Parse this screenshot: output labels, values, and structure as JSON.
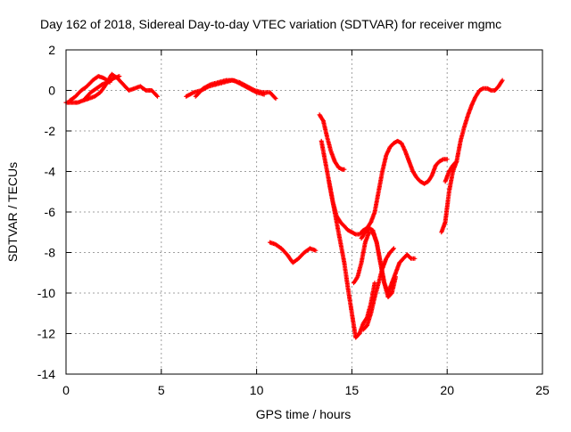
{
  "colors": {
    "series": "#ff0000",
    "grid": "#a0a0a0",
    "axis": "#000000"
  },
  "chart_data": {
    "type": "scatter",
    "title": "Day 162 of 2018, Sidereal Day-to-day VTEC variation (SDTVAR) for receiver mgmc",
    "xlabel": "GPS time / hours",
    "ylabel": "SDTVAR / TECUs",
    "xlim": [
      0,
      25
    ],
    "ylim": [
      -14,
      2
    ],
    "xticks": [
      0,
      5,
      10,
      15,
      20,
      25
    ],
    "yticks": [
      -14,
      -12,
      -10,
      -8,
      -6,
      -4,
      -2,
      0,
      2
    ],
    "grid": true,
    "legend": "none",
    "marker": "plus",
    "segments": [
      {
        "x": [
          0.0,
          0.3,
          0.6,
          0.9,
          1.2,
          1.5,
          1.8,
          2.1,
          2.4,
          2.7,
          3.0,
          3.3,
          3.6,
          3.9,
          4.2,
          4.5,
          4.8
        ],
        "y": [
          -0.6,
          -0.6,
          -0.6,
          -0.5,
          -0.4,
          -0.3,
          -0.1,
          0.3,
          0.8,
          0.6,
          0.3,
          0.0,
          0.1,
          0.2,
          0.0,
          0.0,
          -0.3
        ]
      },
      {
        "x": [
          0.2,
          0.5,
          0.8,
          1.1,
          1.4,
          1.7,
          2.0,
          2.3
        ],
        "y": [
          -0.5,
          -0.3,
          0.0,
          0.2,
          0.5,
          0.7,
          0.6,
          0.4
        ]
      },
      {
        "x": [
          1.0,
          1.3,
          1.6,
          1.9,
          2.2,
          2.5,
          2.8
        ],
        "y": [
          -0.4,
          -0.1,
          0.1,
          0.3,
          0.4,
          0.6,
          0.7
        ]
      },
      {
        "x": [
          6.3,
          6.7,
          7.1,
          7.5,
          7.9,
          8.3,
          8.7,
          9.1,
          9.5,
          9.9,
          10.3,
          10.7,
          11.0
        ],
        "y": [
          -0.3,
          -0.1,
          0.0,
          0.2,
          0.3,
          0.4,
          0.5,
          0.4,
          0.2,
          0.0,
          -0.1,
          -0.1,
          -0.4
        ]
      },
      {
        "x": [
          6.8,
          7.2,
          7.6,
          8.0,
          8.4,
          8.8,
          9.2,
          9.6,
          10.0,
          10.4
        ],
        "y": [
          -0.3,
          0.1,
          0.3,
          0.4,
          0.5,
          0.5,
          0.3,
          0.1,
          -0.1,
          -0.2
        ]
      },
      {
        "x": [
          10.7,
          11.0,
          11.3,
          11.6,
          11.9,
          12.2,
          12.5,
          12.8,
          13.1
        ],
        "y": [
          -7.5,
          -7.6,
          -7.8,
          -8.1,
          -8.5,
          -8.3,
          -8.0,
          -7.8,
          -7.9
        ]
      },
      {
        "x": [
          13.3,
          13.5,
          13.7,
          13.9,
          14.1,
          14.3,
          14.5,
          14.6
        ],
        "y": [
          -1.2,
          -1.5,
          -2.3,
          -3.0,
          -3.5,
          -3.8,
          -3.9,
          -3.9
        ]
      },
      {
        "x": [
          13.4,
          13.6,
          13.8,
          14.0,
          14.2,
          14.4,
          14.6,
          14.8,
          15.0,
          15.2,
          15.4,
          15.6,
          15.8,
          16.0,
          16.2,
          16.4,
          16.6,
          16.8,
          17.0,
          17.2,
          17.4,
          17.6,
          17.8,
          18.0,
          18.2,
          18.4,
          18.6,
          18.8,
          19.0,
          19.2,
          19.4,
          19.6,
          19.8,
          20.0
        ],
        "y": [
          -2.5,
          -3.5,
          -4.5,
          -5.5,
          -6.2,
          -6.5,
          -6.7,
          -6.9,
          -7.0,
          -7.1,
          -7.1,
          -6.9,
          -6.8,
          -6.5,
          -6.0,
          -5.0,
          -4.0,
          -3.2,
          -2.8,
          -2.6,
          -2.5,
          -2.6,
          -3.0,
          -3.5,
          -4.0,
          -4.3,
          -4.5,
          -4.6,
          -4.5,
          -4.2,
          -3.7,
          -3.5,
          -3.4,
          -3.4
        ]
      },
      {
        "x": [
          13.8,
          14.0,
          14.2,
          14.4,
          14.6,
          14.8,
          15.0,
          15.2,
          15.4,
          15.6,
          15.8,
          16.0,
          16.2
        ],
        "y": [
          -4.5,
          -5.5,
          -6.5,
          -7.5,
          -8.5,
          -9.8,
          -11.0,
          -12.2,
          -12.0,
          -11.5,
          -11.2,
          -10.5,
          -9.5
        ]
      },
      {
        "x": [
          15.5,
          15.7,
          15.9,
          16.1,
          16.3,
          16.5,
          16.7,
          16.9,
          17.1,
          17.3,
          17.5,
          17.7,
          17.9,
          18.1,
          18.3
        ],
        "y": [
          -7.3,
          -7.0,
          -6.8,
          -6.9,
          -7.5,
          -8.5,
          -9.5,
          -10.0,
          -9.5,
          -9.0,
          -8.5,
          -8.3,
          -8.1,
          -8.3,
          -8.3
        ]
      },
      {
        "x": [
          15.1,
          15.3,
          15.5,
          15.7,
          15.9,
          16.1,
          16.3,
          16.5,
          16.7,
          16.9,
          17.1,
          17.3
        ],
        "y": [
          -9.5,
          -9.2,
          -8.5,
          -7.5,
          -7.0,
          -7.0,
          -7.5,
          -8.5,
          -9.5,
          -10.2,
          -10.0,
          -9.2
        ]
      },
      {
        "x": [
          15.6,
          15.8,
          16.0,
          16.2,
          16.4,
          16.6,
          16.8,
          17.0,
          17.2
        ],
        "y": [
          -11.8,
          -11.6,
          -11.0,
          -10.2,
          -9.5,
          -8.8,
          -8.3,
          -8.0,
          -7.8
        ]
      },
      {
        "x": [
          19.7,
          19.9,
          20.1,
          20.3,
          20.5,
          20.7,
          20.9,
          21.1,
          21.3,
          21.5,
          21.7,
          21.9,
          22.1,
          22.3,
          22.5,
          22.7,
          22.9
        ],
        "y": [
          -7.0,
          -6.5,
          -5.0,
          -4.0,
          -3.5,
          -2.5,
          -1.8,
          -1.2,
          -0.7,
          -0.3,
          0.0,
          0.1,
          0.1,
          0.0,
          0.0,
          0.2,
          0.5
        ]
      },
      {
        "x": [
          19.9,
          20.1,
          20.3,
          20.5
        ],
        "y": [
          -4.5,
          -4.0,
          -3.7,
          -3.5
        ]
      }
    ]
  }
}
